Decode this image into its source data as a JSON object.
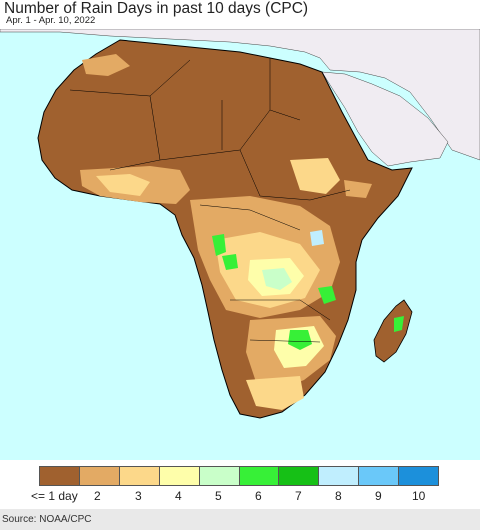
{
  "header": {
    "title": "Number of Rain Days in past 10 days (CPC)",
    "subtitle": "Apr. 1 - Apr. 10, 2022"
  },
  "colors": {
    "ocean": "#ccffff",
    "non_africa_land": "#f0ecf2",
    "border_line": "#000000",
    "class_1": "#a0612f",
    "class_2": "#e3aa64",
    "class_3": "#fcd88a",
    "class_4": "#fefeaa",
    "class_5": "#c9ffc9",
    "class_6": "#37f037",
    "class_7": "#16c016",
    "class_8": "#c0eefe",
    "class_9": "#6ac8f9",
    "class_10": "#1c90db"
  },
  "legend": {
    "items": [
      {
        "label": "<= 1 day",
        "color": "#a0612f"
      },
      {
        "label": "2",
        "color": "#e3aa64"
      },
      {
        "label": "3",
        "color": "#fcd88a"
      },
      {
        "label": "4",
        "color": "#fefeaa"
      },
      {
        "label": "5",
        "color": "#c9ffc9"
      },
      {
        "label": "6",
        "color": "#37f037"
      },
      {
        "label": "7",
        "color": "#16c016"
      },
      {
        "label": "8",
        "color": "#c0eefe"
      },
      {
        "label": "9",
        "color": "#6ac8f9"
      },
      {
        "label": "10",
        "color": "#1c90db"
      }
    ]
  },
  "footer": {
    "source": "Source: NOAA/CPC"
  }
}
